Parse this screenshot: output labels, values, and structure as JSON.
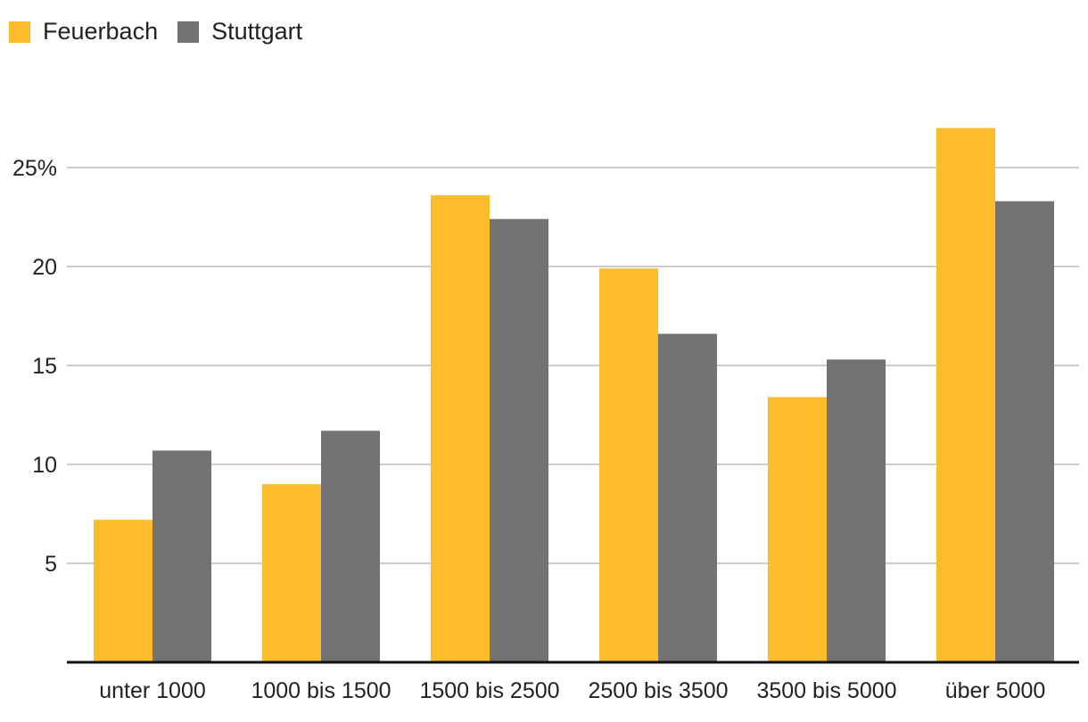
{
  "chart_data": {
    "type": "bar",
    "title": "",
    "xlabel": "",
    "ylabel": "",
    "categories": [
      "unter 1000",
      "1000 bis 1500",
      "1500 bis 2500",
      "2500 bis 3500",
      "3500 bis 5000",
      "über 5000"
    ],
    "series": [
      {
        "name": "Feuerbach",
        "color": "#FDBC2C",
        "values": [
          7.2,
          9.0,
          23.6,
          19.9,
          13.4,
          27.0
        ]
      },
      {
        "name": "Stuttgart",
        "color": "#737373",
        "values": [
          10.7,
          11.7,
          22.4,
          16.6,
          15.3,
          23.3
        ]
      }
    ],
    "ylim": [
      0,
      30
    ],
    "yticks": [
      5,
      10,
      15,
      20,
      25
    ],
    "ytick_labels": [
      "5",
      "10",
      "15",
      "20",
      "25%"
    ],
    "grid": true,
    "legend_position": "top-left"
  }
}
